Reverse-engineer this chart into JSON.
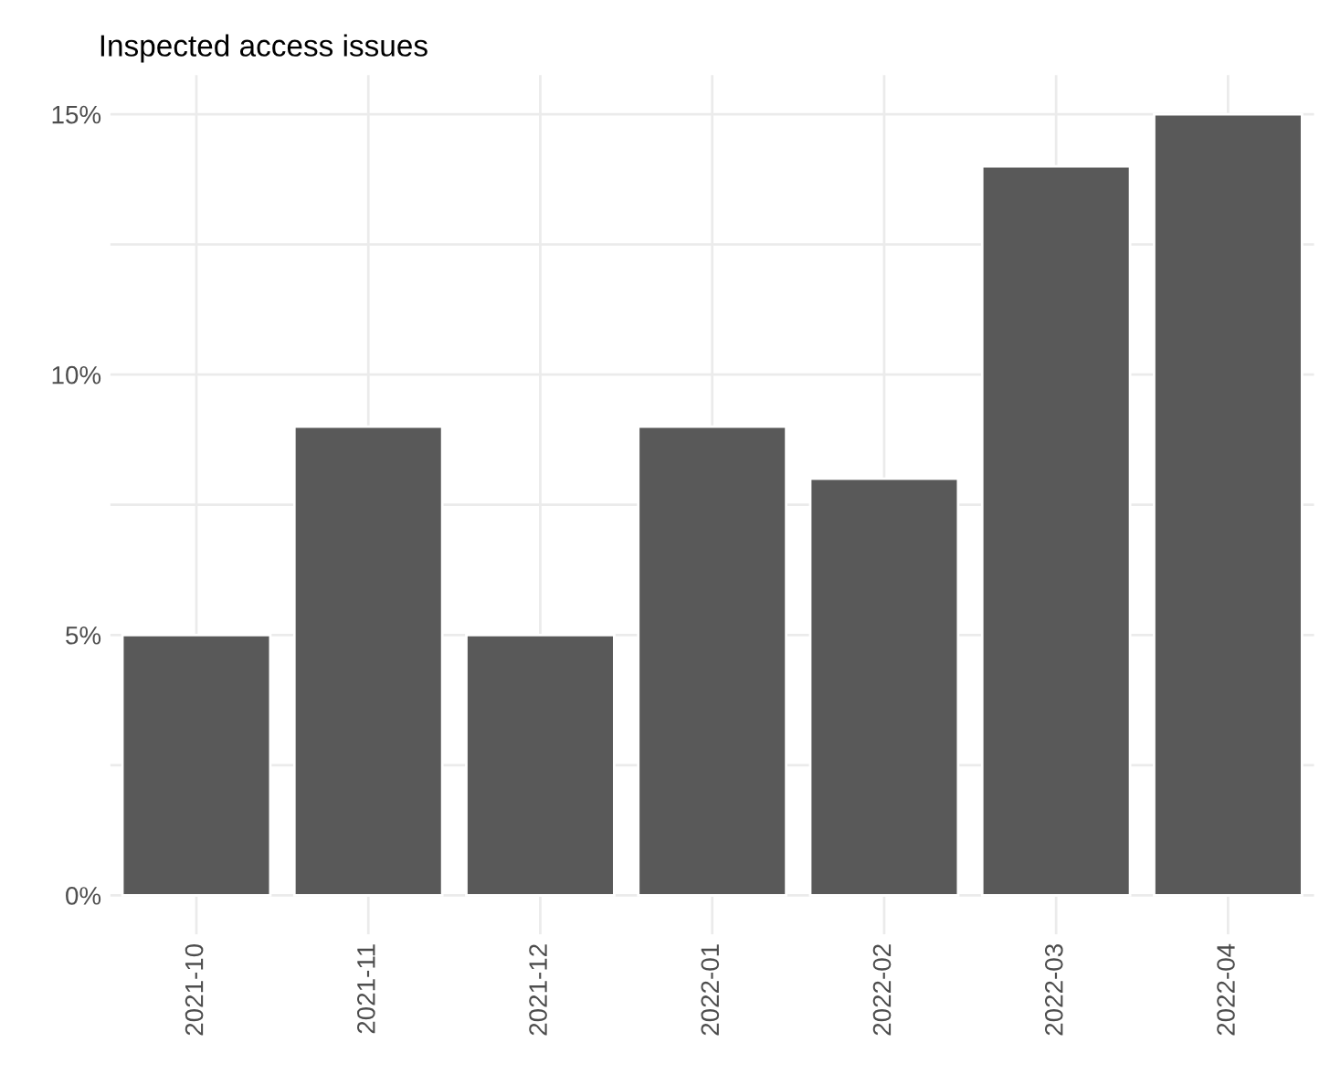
{
  "chart_data": {
    "type": "bar",
    "title": "Inspected access issues",
    "categories": [
      "2021-10",
      "2021-11",
      "2021-12",
      "2022-01",
      "2022-02",
      "2022-03",
      "2022-04"
    ],
    "values": [
      5,
      9,
      5,
      9,
      8,
      14,
      15
    ],
    "color": "#595959",
    "ylim": [
      -0.75,
      15.75
    ],
    "yticks": [
      {
        "value": 0,
        "label": "0%"
      },
      {
        "value": 2.5,
        "label": null
      },
      {
        "value": 5,
        "label": "5%"
      },
      {
        "value": 7.5,
        "label": null
      },
      {
        "value": 10,
        "label": "10%"
      },
      {
        "value": 12.5,
        "label": null
      },
      {
        "value": 15,
        "label": "15%"
      }
    ],
    "grid": true
  }
}
